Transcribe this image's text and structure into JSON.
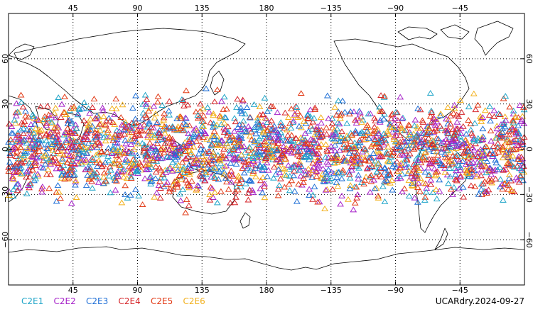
{
  "chart_data": {
    "type": "scatter",
    "projection": "cylindrical-equidistant",
    "lon_range": [
      0,
      360
    ],
    "lat_range": [
      -90,
      90
    ],
    "central_longitude": 180,
    "grid": true,
    "marker": "open-triangle",
    "data_lat_band": [
      -45,
      45
    ],
    "x_tick_labels": [
      {
        "lon": 45,
        "label": "45"
      },
      {
        "lon": 90,
        "label": "90"
      },
      {
        "lon": 135,
        "label": "135"
      },
      {
        "lon": 180,
        "label": "180"
      },
      {
        "lon": 225,
        "label": "−135"
      },
      {
        "lon": 270,
        "label": "−90"
      },
      {
        "lon": 315,
        "label": "−45"
      }
    ],
    "y_tick_labels": [
      {
        "lat": 60,
        "label": "60"
      },
      {
        "lat": 30,
        "label": "30"
      },
      {
        "lat": 0,
        "label": "0"
      },
      {
        "lat": -30,
        "label": "−30"
      },
      {
        "lat": -60,
        "label": "−60"
      }
    ],
    "series": [
      {
        "name": "C2E1",
        "color": "#22a6c9"
      },
      {
        "name": "C2E2",
        "color": "#a622c9"
      },
      {
        "name": "C2E3",
        "color": "#1f6fd6"
      },
      {
        "name": "C2E4",
        "color": "#d6262a"
      },
      {
        "name": "C2E5",
        "color": "#e23b17"
      },
      {
        "name": "C2E6",
        "color": "#f2b01c"
      }
    ]
  },
  "footer": {
    "stamp": "UCARdry.2024-09-27"
  }
}
